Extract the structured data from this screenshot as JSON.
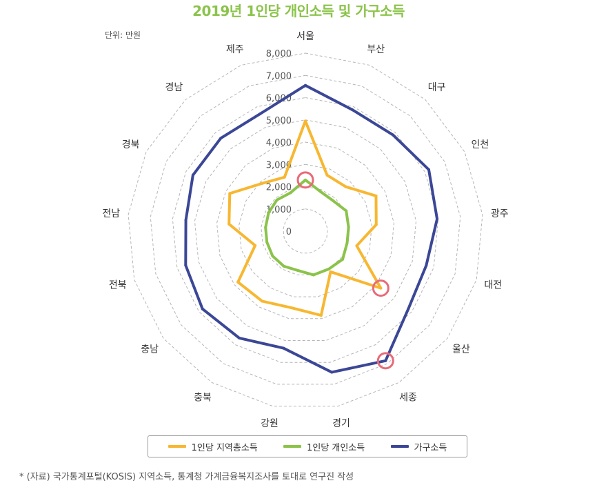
{
  "title": "2019년 1인당 개인소득 및 가구소득",
  "unit_note": "단위: 만원",
  "source_note": "* (자료) 국가통계포털(KOSIS) 지역소득, 통계청 가계금융복지조사를 토대로 연구진 작성",
  "chart_data": {
    "type": "radar",
    "title": "2019년 1인당 개인소득 및 가구소득",
    "categories": [
      "서울",
      "부산",
      "대구",
      "인천",
      "광주",
      "대전",
      "울산",
      "세종",
      "경기",
      "강원",
      "충북",
      "충남",
      "전북",
      "전남",
      "경북",
      "경남",
      "제주"
    ],
    "rlim": [
      0,
      8000
    ],
    "ticks": [
      0,
      1000,
      2000,
      3000,
      4000,
      5000,
      6000,
      7000,
      8000
    ],
    "tick_labels": [
      "0",
      "1,000",
      "2,000",
      "3,000",
      "4,000",
      "5,000",
      "6,000",
      "7,000",
      "8,000"
    ],
    "grid": true,
    "legend_position": "bottom",
    "series": [
      {
        "name": "1인당 지역총소득",
        "color": "#f7b731",
        "values": [
          4950,
          2700,
          2700,
          3550,
          3200,
          2400,
          4250,
          2150,
          3850,
          3500,
          3700,
          3800,
          2350,
          3450,
          3800,
          2900,
          2600
        ]
      },
      {
        "name": "1인당 개인소득",
        "color": "#8bc34a",
        "values": [
          2300,
          1900,
          1850,
          2050,
          1950,
          1950,
          2100,
          2000,
          2000,
          1800,
          1850,
          1850,
          1800,
          1800,
          1850,
          1900,
          1850
        ]
      },
      {
        "name": "가구소득",
        "color": "#3b4796",
        "values": [
          6550,
          5850,
          5850,
          6200,
          5950,
          5650,
          5800,
          6850,
          6450,
          5350,
          5650,
          5800,
          5600,
          5400,
          5650,
          5650,
          5650
        ]
      }
    ],
    "highlights": [
      {
        "series": "1인당 개인소득",
        "category": "서울"
      },
      {
        "series": "1인당 지역총소득",
        "category": "울산"
      },
      {
        "series": "가구소득",
        "category": "세종"
      }
    ]
  }
}
